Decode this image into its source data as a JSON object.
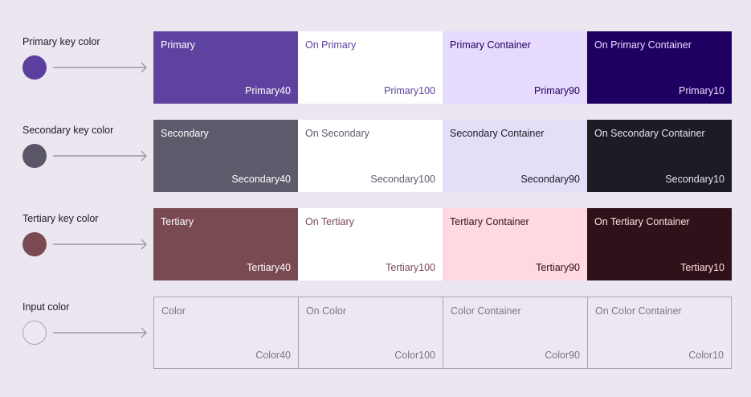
{
  "rows": [
    {
      "key_label": "Primary key color",
      "key_color": "#5B40A0",
      "tiles": [
        {
          "name": "Primary",
          "tone": "Primary40",
          "bg": "#5D439F",
          "fg": "#FFFFFF"
        },
        {
          "name": "On Primary",
          "tone": "Primary100",
          "bg": "#FFFFFF",
          "fg": "#5D439F"
        },
        {
          "name": "Primary Container",
          "tone": "Primary90",
          "bg": "#E7DAFF",
          "fg": "#21005D"
        },
        {
          "name": "On Primary Container",
          "tone": "Primary10",
          "bg": "#1D0060",
          "fg": "#E8DDFF"
        }
      ]
    },
    {
      "key_label": "Secondary key color",
      "key_color": "#5A5668",
      "tiles": [
        {
          "name": "Secondary",
          "tone": "Secondary40",
          "bg": "#5E5A6B",
          "fg": "#FFFFFF"
        },
        {
          "name": "On Secondary",
          "tone": "Secondary100",
          "bg": "#FFFFFF",
          "fg": "#5E5A6B"
        },
        {
          "name": "Secondary Container",
          "tone": "Secondary90",
          "bg": "#E5DEF8",
          "fg": "#1C1A26"
        },
        {
          "name": "On Secondary Container",
          "tone": "Secondary10",
          "bg": "#1D1B24",
          "fg": "#E6E1F2"
        }
      ]
    },
    {
      "key_label": "Tertiary key color",
      "key_color": "#7A4A52",
      "tiles": [
        {
          "name": "Tertiary",
          "tone": "Tertiary40",
          "bg": "#7A4A52",
          "fg": "#FFFFFF"
        },
        {
          "name": "On Tertiary",
          "tone": "Tertiary100",
          "bg": "#FFFFFF",
          "fg": "#7A4A52"
        },
        {
          "name": "Tertiary Container",
          "tone": "Tertiary90",
          "bg": "#FFD8E2",
          "fg": "#31101A"
        },
        {
          "name": "On Tertiary Container",
          "tone": "Tertiary10",
          "bg": "#2F1219",
          "fg": "#FFDDE4"
        }
      ]
    },
    {
      "key_label": "Input color",
      "key_color": "#ECE7F1",
      "outlined": true,
      "tiles": [
        {
          "name": "Color",
          "tone": "Color40",
          "bg": "#ECE7F1",
          "fg": "#7C7780"
        },
        {
          "name": "On Color",
          "tone": "Color100",
          "bg": "#ECE7F1",
          "fg": "#7C7780"
        },
        {
          "name": "Color Container",
          "tone": "Color90",
          "bg": "#ECE7F1",
          "fg": "#7C7780"
        },
        {
          "name": "On Color Container",
          "tone": "Color10",
          "bg": "#ECE7F1",
          "fg": "#7C7780"
        }
      ]
    }
  ]
}
